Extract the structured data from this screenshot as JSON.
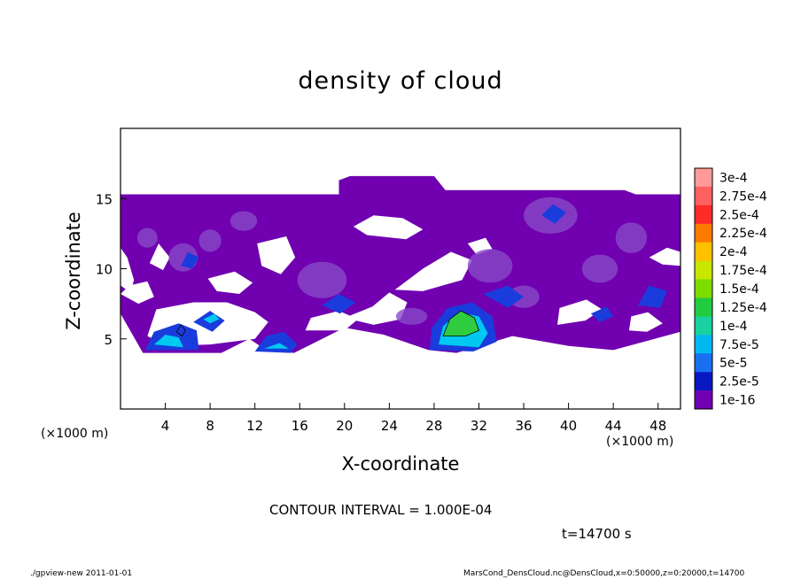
{
  "chart_data": {
    "type": "heatmap",
    "title": "density of cloud",
    "xlabel": "X-coordinate",
    "ylabel": "Z-coordinate",
    "x_unit_left": "(×1000 m)",
    "x_unit_right": "(×1000 m)",
    "xlim": [
      0,
      50
    ],
    "ylim": [
      0,
      20
    ],
    "x_ticks": [
      "4",
      "8",
      "12",
      "16",
      "20",
      "24",
      "28",
      "32",
      "36",
      "40",
      "44",
      "48"
    ],
    "y_ticks": [
      "5",
      "10",
      "15"
    ],
    "colorbar": {
      "levels": [
        "3e-4",
        "2.75e-4",
        "2.5e-4",
        "2.25e-4",
        "2e-4",
        "1.75e-4",
        "1.5e-4",
        "1.25e-4",
        "1e-4",
        "7.5e-5",
        "5e-5",
        "2.5e-5",
        "1e-16"
      ],
      "colors": [
        "#ff9a9a",
        "#ff6060",
        "#ff2a2a",
        "#ff7a00",
        "#ffc000",
        "#c8e600",
        "#7cdc00",
        "#20cc40",
        "#18d0a0",
        "#00b8f0",
        "#1870f0",
        "#0818c0",
        "#7000b0"
      ]
    },
    "base_color": "#7000b0",
    "mid_color": "#8848c8",
    "blue_color": "#1a3cdc",
    "cyan_color": "#00c8f0",
    "green_color": "#30cc40",
    "contour_interval": "CONTOUR INTERVAL = 1.000E-04",
    "time": "t=14700 s"
  },
  "footer": {
    "left": "./gpview-new 2011-01-01",
    "right": "MarsCond_DensCloud.nc@DensCloud,x=0:50000,z=0:20000,t=14700"
  }
}
